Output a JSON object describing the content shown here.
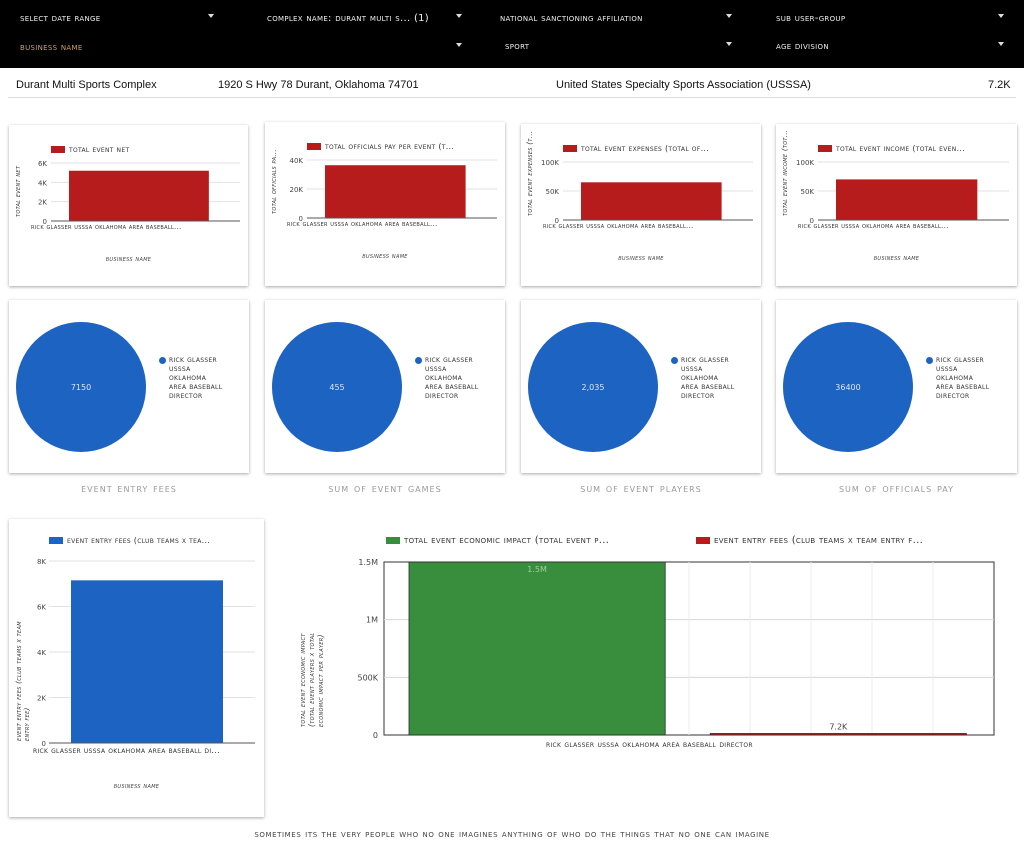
{
  "filters": {
    "date_range": "select date range",
    "complex_name": "COMPLEX NAME: Durant Multi S... (1)",
    "national_sanctioning": "NATIONAL SANCTIONING AFFILIATION",
    "sub_user_group": "SUB USER-GROUP",
    "business_name": "BUSINESS NAME",
    "sport": "SPORT",
    "age_division": "AGE DIVISION"
  },
  "info": {
    "complex": "Durant Multi Sports Complex",
    "address": "1920 S Hwy 78 Durant, Oklahoma 74701",
    "association": "United States Specialty Sports Association (USSSA)",
    "value": "7.2K"
  },
  "colors": {
    "red": "#b71c1c",
    "blue": "#1d63c2",
    "green": "#388e3c"
  },
  "bar_cards": [
    {
      "legend": "Total Event Net",
      "ylabel": "Total Event Net",
      "category": "Rick Glasser USSSA Oklahoma Area Baseball...",
      "xtitle": "BUSINESS NAME"
    },
    {
      "legend": "Total Officials Pay Per Event (T...",
      "ylabel": "Total Officials Pa...",
      "category": "Rick Glasser USSSA Oklahoma Area Baseball...",
      "xtitle": "BUSINESS NAME"
    },
    {
      "legend": "Total Event Expenses (Total Of...",
      "ylabel": "Total Event Expenses (T...",
      "category": "Rick Glasser USSSA Oklahoma Area Baseball...",
      "xtitle": "BUSINESS NAME"
    },
    {
      "legend": "Total Event Income (Total Even...",
      "ylabel": "Total Event Income (Tot...",
      "category": "Rick Glasser USSSA Oklahoma Area Baseball...",
      "xtitle": "BUSINESS NAME"
    }
  ],
  "pie_cards": [
    {
      "value": "7150",
      "legend": "Rick Glasser USSSA Oklahoma Area Baseball Director",
      "caption": "Event Entry Fees"
    },
    {
      "value": "455",
      "legend": "Rick Glasser USSSA Oklahoma Area Baseball Director",
      "caption": "Sum of Event Games"
    },
    {
      "value": "2,035",
      "legend": "Rick Glasser USSSA Oklahoma Area Baseball Director",
      "caption": "Sum of Event Players"
    },
    {
      "value": "36400",
      "legend": "Rick Glasser USSSA Oklahoma Area Baseball Director",
      "caption": "Sum of Officials Pay"
    }
  ],
  "fees_card": {
    "legend": "Event Entry Fees (Club Teams x Tea...",
    "ylabel_line1": "Event Entry Fees (Club Teams x Team",
    "ylabel_line2": "Entry Fee)",
    "category": "Rick Glasser USSSA Oklahoma Area Baseball Di...",
    "xtitle": "BUSINESS NAME"
  },
  "impact_card": {
    "legend1": "Total Event Economic Impact (Total Event P...",
    "legend2": "Event Entry Fees (Club Teams x Team Entry F...",
    "ylabel_line1": "Total Event Economic Impact",
    "ylabel_line2": "(Total Event Players x Total",
    "ylabel_line3": "Economic Impact per Player)",
    "category": "Rick Glasser USSSA Oklahoma Area Baseball Director"
  },
  "quote": "Sometimes its the very people who no one imagines anything of who do the things that no one can imagine",
  "chart_data": [
    {
      "type": "bar",
      "categories": [
        "Rick Glasser USSSA Oklahoma Area Baseball..."
      ],
      "series": [
        {
          "name": "Total Event Net",
          "values": [
            5200
          ]
        }
      ],
      "ylabel": "Total Event Net",
      "xlabel": "BUSINESS NAME",
      "ylim": [
        0,
        6000
      ],
      "yticks": [
        "0",
        "2K",
        "4K",
        "6K"
      ]
    },
    {
      "type": "bar",
      "categories": [
        "Rick Glasser USSSA Oklahoma Area Baseball..."
      ],
      "series": [
        {
          "name": "Total Officials Pay Per Event (T...",
          "values": [
            36400
          ]
        }
      ],
      "ylabel": "Total Officials Pa...",
      "xlabel": "BUSINESS NAME",
      "ylim": [
        0,
        40000
      ],
      "yticks": [
        "0",
        "20K",
        "40K"
      ]
    },
    {
      "type": "bar",
      "categories": [
        "Rick Glasser USSSA Oklahoma Area Baseball..."
      ],
      "series": [
        {
          "name": "Total Event Expenses (Total Of...",
          "values": [
            65000
          ]
        }
      ],
      "ylabel": "Total Event Expenses (T...",
      "xlabel": "BUSINESS NAME",
      "ylim": [
        0,
        100000
      ],
      "yticks": [
        "0",
        "50K",
        "100K"
      ]
    },
    {
      "type": "bar",
      "categories": [
        "Rick Glasser USSSA Oklahoma Area Baseball..."
      ],
      "series": [
        {
          "name": "Total Event Income (Total Even...",
          "values": [
            70000
          ]
        }
      ],
      "ylabel": "Total Event Income (Tot...",
      "xlabel": "BUSINESS NAME",
      "ylim": [
        0,
        100000
      ],
      "yticks": [
        "0",
        "50K",
        "100K"
      ]
    },
    {
      "type": "pie",
      "labels": [
        "Rick Glasser USSSA Oklahoma Area Baseball Director"
      ],
      "values": [
        7150
      ],
      "title": "Event Entry Fees"
    },
    {
      "type": "pie",
      "labels": [
        "Rick Glasser USSSA Oklahoma Area Baseball Director"
      ],
      "values": [
        455
      ],
      "title": "Sum of Event Games"
    },
    {
      "type": "pie",
      "labels": [
        "Rick Glasser USSSA Oklahoma Area Baseball Director"
      ],
      "values": [
        2035
      ],
      "title": "Sum of Event Players"
    },
    {
      "type": "pie",
      "labels": [
        "Rick Glasser USSSA Oklahoma Area Baseball Director"
      ],
      "values": [
        36400
      ],
      "title": "Sum of Officials Pay"
    },
    {
      "type": "bar",
      "categories": [
        "Rick Glasser USSSA Oklahoma Area Baseball Di..."
      ],
      "series": [
        {
          "name": "Event Entry Fees (Club Teams x Tea...",
          "values": [
            7150
          ]
        }
      ],
      "ylabel": "Event Entry Fees (Club Teams x Team Entry Fee)",
      "xlabel": "BUSINESS NAME",
      "ylim": [
        0,
        8000
      ],
      "yticks": [
        "0",
        "2K",
        "4K",
        "6K",
        "8K"
      ]
    },
    {
      "type": "bar",
      "categories": [
        "Rick Glasser USSSA Oklahoma Area Baseball Director"
      ],
      "series": [
        {
          "name": "Total Event Economic Impact (Total Event P...",
          "values": [
            1500000
          ],
          "data_label": "1.5M"
        },
        {
          "name": "Event Entry Fees (Club Teams x Team Entry F...",
          "values": [
            7200
          ],
          "data_label": "7.2K"
        }
      ],
      "ylabel": "Total Event Economic Impact (Total Event Players x Total Economic Impact per Player)",
      "ylim": [
        0,
        1500000
      ],
      "yticks": [
        "0",
        "500K",
        "1M",
        "1.5M"
      ],
      "grid": true
    }
  ]
}
